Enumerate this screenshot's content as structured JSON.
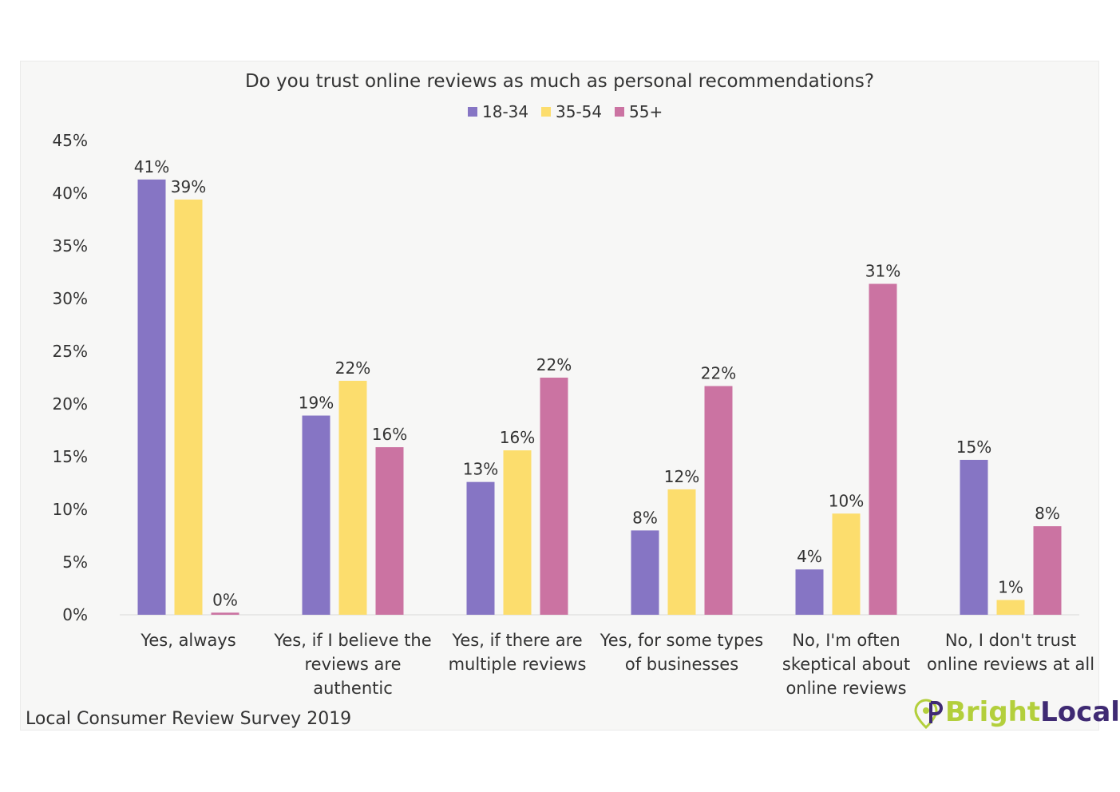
{
  "chart_data": {
    "type": "bar",
    "title": "Do you trust online reviews as much as personal recommendations?",
    "categories": [
      [
        "Yes, always"
      ],
      [
        "Yes, if I believe the",
        "reviews are",
        "authentic"
      ],
      [
        "Yes, if there are",
        "multiple reviews"
      ],
      [
        "Yes, for some types",
        "of businesses"
      ],
      [
        "No, I'm often",
        "skeptical about",
        "online reviews"
      ],
      [
        "No, I don't trust",
        "online reviews at all"
      ]
    ],
    "series": [
      {
        "name": "18-34",
        "color": "#8675c4",
        "values": [
          41.3,
          18.9,
          12.6,
          8.0,
          4.3,
          14.7
        ],
        "labels": [
          "41%",
          "19%",
          "13%",
          "8%",
          "4%",
          "15%"
        ]
      },
      {
        "name": "35-54",
        "color": "#fcdd6d",
        "values": [
          39.4,
          22.2,
          15.6,
          11.9,
          9.6,
          1.4
        ],
        "labels": [
          "39%",
          "22%",
          "16%",
          "12%",
          "10%",
          "1%"
        ]
      },
      {
        "name": "55+",
        "color": "#cb73a2",
        "values": [
          0.2,
          15.9,
          22.5,
          21.7,
          31.4,
          8.4
        ],
        "labels": [
          "0%",
          "16%",
          "22%",
          "22%",
          "31%",
          "8%"
        ]
      }
    ],
    "yticks": [
      "0%",
      "5%",
      "10%",
      "15%",
      "20%",
      "25%",
      "30%",
      "35%",
      "40%",
      "45%"
    ],
    "ylim": [
      0,
      45
    ],
    "legend_position": "top-center",
    "grid": false
  },
  "footer": {
    "source": "Local Consumer Review Survey 2019",
    "brand_part1": "Bright",
    "brand_part2": "Local",
    "brand_color1": "#b3cf3c",
    "brand_color2": "#3f2a73"
  }
}
